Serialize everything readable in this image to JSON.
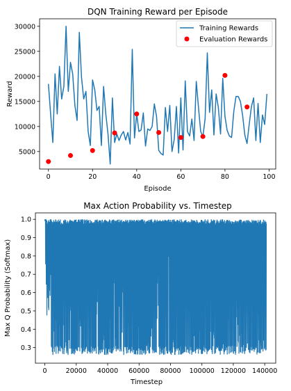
{
  "chart_data": [
    {
      "type": "line",
      "title": "DQN Training Reward per Episode",
      "xlabel": "Episode",
      "ylabel": "Reward",
      "xlim": [
        -4,
        103
      ],
      "ylim": [
        1500,
        31500
      ],
      "xticks": [
        0,
        20,
        40,
        60,
        80,
        100
      ],
      "yticks": [
        5000,
        10000,
        15000,
        20000,
        25000,
        30000
      ],
      "grid": false,
      "legend_position": "top-right",
      "colors": {
        "training": "#1f77b4",
        "evaluation": "#ff0000"
      },
      "series": [
        {
          "name": "Training Rewards",
          "type": "line",
          "x": [
            0,
            1,
            2,
            3,
            4,
            5,
            6,
            7,
            8,
            9,
            10,
            11,
            12,
            13,
            14,
            15,
            16,
            17,
            18,
            19,
            20,
            21,
            22,
            23,
            24,
            25,
            26,
            27,
            28,
            29,
            30,
            31,
            32,
            33,
            34,
            35,
            36,
            37,
            38,
            39,
            40,
            41,
            42,
            43,
            44,
            45,
            46,
            47,
            48,
            49,
            50,
            51,
            52,
            53,
            54,
            55,
            56,
            57,
            58,
            59,
            60,
            61,
            62,
            63,
            64,
            65,
            66,
            67,
            68,
            69,
            70,
            71,
            72,
            73,
            74,
            75,
            76,
            77,
            78,
            79,
            80,
            81,
            82,
            83,
            84,
            85,
            86,
            87,
            88,
            89,
            90,
            91,
            92,
            93,
            94,
            95,
            96,
            97,
            98,
            99
          ],
          "y": [
            18500,
            12500,
            6800,
            20500,
            12500,
            22000,
            15500,
            18000,
            30000,
            17000,
            22800,
            20500,
            14200,
            11200,
            28800,
            19800,
            15500,
            17000,
            9000,
            6200,
            19300,
            17300,
            13200,
            14000,
            6200,
            18000,
            12500,
            8500,
            2500,
            15700,
            6800,
            8500,
            7200,
            8300,
            9000,
            7300,
            8800,
            6500,
            25400,
            7700,
            12500,
            9000,
            9300,
            12700,
            6100,
            9500,
            9200,
            10000,
            14500,
            12000,
            5200,
            4600,
            4300,
            13800,
            9000,
            14200,
            5000,
            7400,
            14000,
            4700,
            15700,
            5300,
            19100,
            9000,
            8100,
            11500,
            7200,
            19000,
            13800,
            9000,
            8000,
            11500,
            24700,
            12800,
            17300,
            8300,
            16500,
            13800,
            8500,
            19600,
            12000,
            9200,
            8100,
            7800,
            13000,
            16000,
            16000,
            15000,
            12200,
            8300,
            6600,
            10500,
            14000,
            15700,
            7200,
            14600,
            6800,
            12300,
            10400,
            16500
          ]
        },
        {
          "name": "Evaluation Rewards",
          "type": "scatter",
          "x": [
            0,
            10,
            20,
            30,
            40,
            50,
            60,
            70,
            80,
            90
          ],
          "y": [
            3000,
            4200,
            5200,
            8700,
            12500,
            8800,
            7800,
            8000,
            20200,
            13900
          ]
        }
      ]
    },
    {
      "type": "line",
      "title": "Max Action Probability vs. Timestep",
      "xlabel": "Timestep",
      "ylabel": "Max Q Probability (Softmax)",
      "xlim": [
        -6000,
        147000
      ],
      "ylim": [
        0.215,
        1.035
      ],
      "xticks": [
        0,
        20000,
        40000,
        60000,
        80000,
        100000,
        120000,
        140000
      ],
      "yticks": [
        0.3,
        0.4,
        0.5,
        0.6,
        0.7,
        0.8,
        0.9,
        1.0
      ],
      "grid": false,
      "colors": {
        "line": "#1f77b4"
      },
      "series": [
        {
          "type": "line",
          "x_range": [
            0,
            141000
          ],
          "y_min": 0.26,
          "y_max": 1.0
        }
      ]
    }
  ]
}
